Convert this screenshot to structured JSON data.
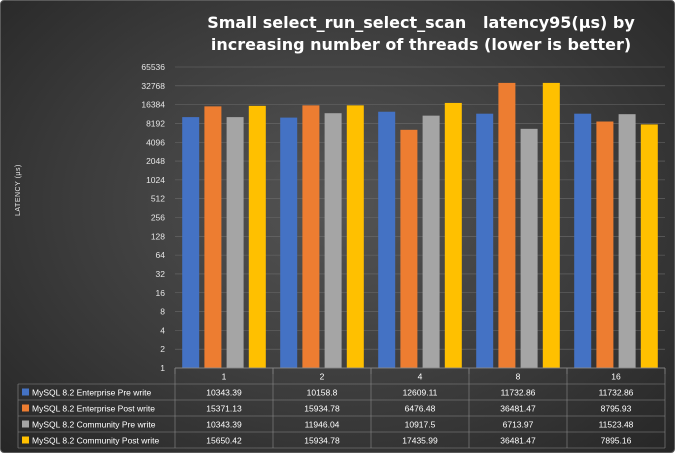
{
  "chart_data": {
    "type": "bar",
    "title": "Small select_run_select_scan   latency95(µs) by increasing number of threads (lower is better)",
    "ylabel": "LATENCY (µs)",
    "y_scale": "log2",
    "ylim": [
      1,
      65536
    ],
    "y_ticks": [
      "1",
      "2",
      "4",
      "8",
      "16",
      "32",
      "64",
      "128",
      "256",
      "512",
      "1024",
      "2048",
      "4096",
      "8192",
      "16384",
      "32768",
      "65536"
    ],
    "categories": [
      "1",
      "2",
      "4",
      "8",
      "16"
    ],
    "grid": true,
    "legend": "data-table-below",
    "series": [
      {
        "name": "MySQL 8.2 Enterprise Pre write",
        "color": "#4472c4",
        "values": [
          10343.39,
          10158.8,
          12609.11,
          11732.86,
          11732.86
        ]
      },
      {
        "name": "MySQL 8.2 Enterprise Post write",
        "color": "#ed7d31",
        "values": [
          15371.13,
          15934.78,
          6476.48,
          36481.47,
          8795.93
        ]
      },
      {
        "name": "MySQL 8.2 Community Pre write",
        "color": "#a5a5a5",
        "values": [
          10343.39,
          11946.04,
          10917.5,
          6713.97,
          11523.48
        ]
      },
      {
        "name": "MySQL 8.2 Community Post write",
        "color": "#ffc000",
        "values": [
          15650.42,
          15934.78,
          17435.99,
          36481.47,
          7895.16
        ]
      }
    ]
  }
}
